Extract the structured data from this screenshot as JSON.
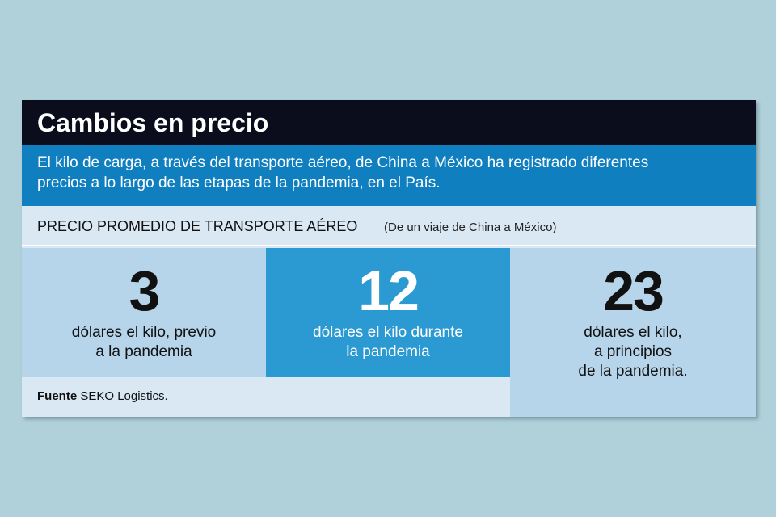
{
  "title": "Cambios en precio",
  "description_line1": "El kilo de carga, a través del transporte aéreo, de China a México ha registrado diferentes",
  "description_line2": "precios a lo largo de las etapas de la pandemia, en el País.",
  "subtitle": "PRECIO PROMEDIO DE TRANSPORTE AÉREO",
  "subtitle_note": "(De un viaje de China a México)",
  "panels": [
    {
      "value": "3",
      "caption_lines": [
        "dólares el kilo, previo",
        "a la pandemia"
      ]
    },
    {
      "value": "12",
      "caption_lines": [
        "dólares el kilo durante",
        "la pandemia"
      ]
    },
    {
      "value": "23",
      "caption_lines": [
        "dólares el kilo,",
        "a principios",
        "de la pandemia."
      ]
    }
  ],
  "source_label": "Fuente",
  "source_value": "SEKO Logistics.",
  "colors": {
    "background": "#b0d0da",
    "title_bar": "#0b0d1c",
    "description_bar": "#0f7fc0",
    "panel_light": "#b7d5ea",
    "panel_highlight": "#2b9ad2"
  }
}
